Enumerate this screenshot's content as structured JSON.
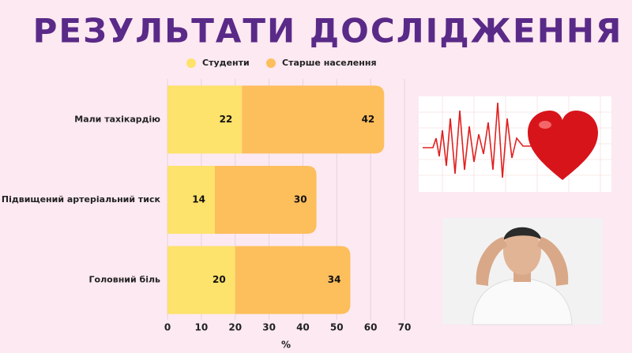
{
  "chart_data": {
    "type": "stacked-bar-horizontal",
    "title": "РЕЗУЛЬТАТИ ДОСЛІДЖЕННЯ",
    "x_label": "%",
    "categories": [
      "Мали тахікардію",
      "Підвищений артеріальний тиск",
      "Головний біль"
    ],
    "series": [
      {
        "name": "Студенти",
        "color": "#fde26b",
        "values": [
          22,
          14,
          20
        ]
      },
      {
        "name": "Старше населення",
        "color": "#fdbe5c",
        "values": [
          42,
          30,
          34
        ]
      }
    ],
    "xlim": [
      0,
      70
    ],
    "xticks": [
      0,
      10,
      20,
      30,
      40,
      50,
      60,
      70
    ],
    "grid": true
  }
}
